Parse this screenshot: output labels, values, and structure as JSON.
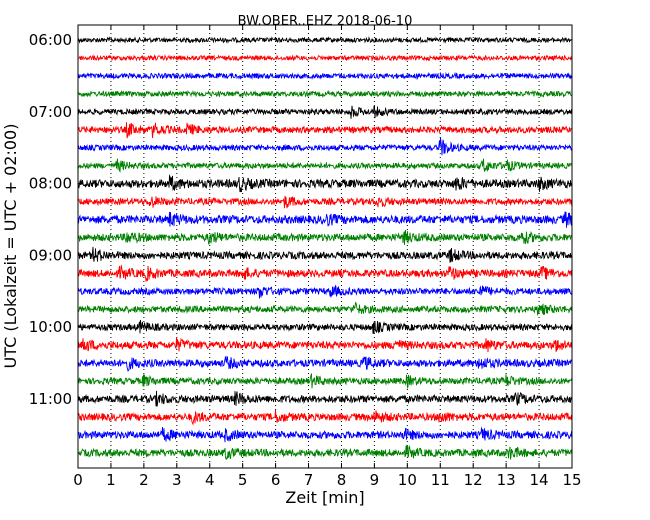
{
  "chart_data": {
    "type": "line",
    "subtype": "seismogram-dayplot",
    "title": "BW.OBER..EHZ 2018-06-10",
    "xlabel": "Zeit  [min]",
    "ylabel": "UTC (Lokalzeit = UTC + 02:00)",
    "xlim": [
      0,
      15
    ],
    "x_ticks": [
      "0",
      "1",
      "2",
      "3",
      "4",
      "5",
      "6",
      "7",
      "8",
      "9",
      "10",
      "11",
      "12",
      "13",
      "14",
      "15"
    ],
    "y_tick_labels": [
      "06:00",
      "07:00",
      "08:00",
      "09:00",
      "10:00",
      "11:00"
    ],
    "minutes_per_row": 15,
    "rows": 24,
    "start_time": "06:00",
    "end_time": "12:00",
    "grid": "vertical dotted lines at each minute",
    "color_cycle": [
      "#000000",
      "#ff0000",
      "#0000ff",
      "#008000"
    ],
    "series": [
      {
        "start": "06:00",
        "color": "#000000",
        "amplitude": 0.25,
        "events": []
      },
      {
        "start": "06:15",
        "color": "#ff0000",
        "amplitude": 0.25,
        "events": []
      },
      {
        "start": "06:30",
        "color": "#0000ff",
        "amplitude": 0.28,
        "events": []
      },
      {
        "start": "06:45",
        "color": "#008000",
        "amplitude": 0.28,
        "events": []
      },
      {
        "start": "07:00",
        "color": "#000000",
        "amplitude": 0.3,
        "events": [
          [
            8.3,
            0.5
          ],
          [
            9.0,
            0.4
          ]
        ]
      },
      {
        "start": "07:15",
        "color": "#ff0000",
        "amplitude": 0.35,
        "events": [
          [
            1.5,
            0.6
          ],
          [
            2.3,
            0.55
          ],
          [
            3.3,
            0.5
          ]
        ]
      },
      {
        "start": "07:30",
        "color": "#0000ff",
        "amplitude": 0.3,
        "events": [
          [
            11.0,
            0.9
          ]
        ]
      },
      {
        "start": "07:45",
        "color": "#008000",
        "amplitude": 0.3,
        "events": [
          [
            1.2,
            0.5
          ],
          [
            12.3,
            0.6
          ],
          [
            13.0,
            0.5
          ]
        ]
      },
      {
        "start": "08:00",
        "color": "#000000",
        "amplitude": 0.45,
        "events": [
          [
            2.8,
            0.55
          ],
          [
            4.9,
            0.6
          ],
          [
            11.5,
            0.55
          ],
          [
            14.0,
            0.5
          ]
        ]
      },
      {
        "start": "08:15",
        "color": "#ff0000",
        "amplitude": 0.35,
        "events": [
          [
            2.2,
            0.5
          ],
          [
            6.3,
            0.5
          ],
          [
            9.1,
            0.45
          ]
        ]
      },
      {
        "start": "08:30",
        "color": "#0000ff",
        "amplitude": 0.45,
        "events": [
          [
            2.8,
            0.55
          ],
          [
            7.5,
            0.5
          ],
          [
            14.8,
            0.6
          ]
        ]
      },
      {
        "start": "08:45",
        "color": "#008000",
        "amplitude": 0.4,
        "events": [
          [
            1.5,
            0.5
          ],
          [
            4.0,
            0.5
          ],
          [
            9.9,
            0.5
          ],
          [
            13.5,
            0.5
          ]
        ]
      },
      {
        "start": "09:00",
        "color": "#000000",
        "amplitude": 0.4,
        "events": [
          [
            0.5,
            0.55
          ],
          [
            11.3,
            0.55
          ]
        ]
      },
      {
        "start": "09:15",
        "color": "#ff0000",
        "amplitude": 0.4,
        "events": [
          [
            1.3,
            0.5
          ],
          [
            2.1,
            0.5
          ],
          [
            5.0,
            0.5
          ],
          [
            11.3,
            0.5
          ],
          [
            14.1,
            0.5
          ]
        ]
      },
      {
        "start": "09:30",
        "color": "#0000ff",
        "amplitude": 0.35,
        "events": [
          [
            5.5,
            0.55
          ],
          [
            7.7,
            0.45
          ],
          [
            12.2,
            0.5
          ]
        ]
      },
      {
        "start": "09:45",
        "color": "#008000",
        "amplitude": 0.35,
        "events": [
          [
            8.4,
            0.5
          ],
          [
            14.0,
            0.5
          ]
        ]
      },
      {
        "start": "10:00",
        "color": "#000000",
        "amplitude": 0.35,
        "events": [
          [
            1.9,
            0.45
          ],
          [
            9.0,
            0.5
          ]
        ]
      },
      {
        "start": "10:15",
        "color": "#ff0000",
        "amplitude": 0.4,
        "events": [
          [
            0.2,
            0.5
          ],
          [
            3.0,
            0.5
          ],
          [
            9.6,
            0.45
          ],
          [
            12.4,
            0.5
          ],
          [
            14.5,
            0.45
          ]
        ]
      },
      {
        "start": "10:30",
        "color": "#0000ff",
        "amplitude": 0.4,
        "events": [
          [
            1.5,
            0.5
          ],
          [
            4.5,
            0.45
          ],
          [
            8.7,
            0.5
          ],
          [
            12.2,
            0.5
          ]
        ]
      },
      {
        "start": "10:45",
        "color": "#008000",
        "amplitude": 0.35,
        "events": [
          [
            2.0,
            0.45
          ],
          [
            7.1,
            0.5
          ],
          [
            10.0,
            0.45
          ],
          [
            13.0,
            0.5
          ]
        ]
      },
      {
        "start": "11:00",
        "color": "#000000",
        "amplitude": 0.4,
        "events": [
          [
            2.4,
            0.5
          ],
          [
            4.8,
            0.5
          ],
          [
            13.3,
            0.5
          ]
        ]
      },
      {
        "start": "11:15",
        "color": "#ff0000",
        "amplitude": 0.4,
        "events": [
          [
            3.5,
            0.45
          ],
          [
            6.0,
            0.45
          ],
          [
            9.0,
            0.5
          ],
          [
            11.0,
            0.45
          ]
        ]
      },
      {
        "start": "11:30",
        "color": "#0000ff",
        "amplitude": 0.4,
        "events": [
          [
            2.6,
            0.5
          ],
          [
            4.5,
            0.45
          ],
          [
            9.9,
            0.45
          ],
          [
            12.3,
            0.45
          ]
        ]
      },
      {
        "start": "11:45",
        "color": "#008000",
        "amplitude": 0.4,
        "events": [
          [
            4.5,
            0.45
          ],
          [
            10.0,
            0.45
          ],
          [
            13.1,
            0.5
          ]
        ]
      }
    ]
  }
}
